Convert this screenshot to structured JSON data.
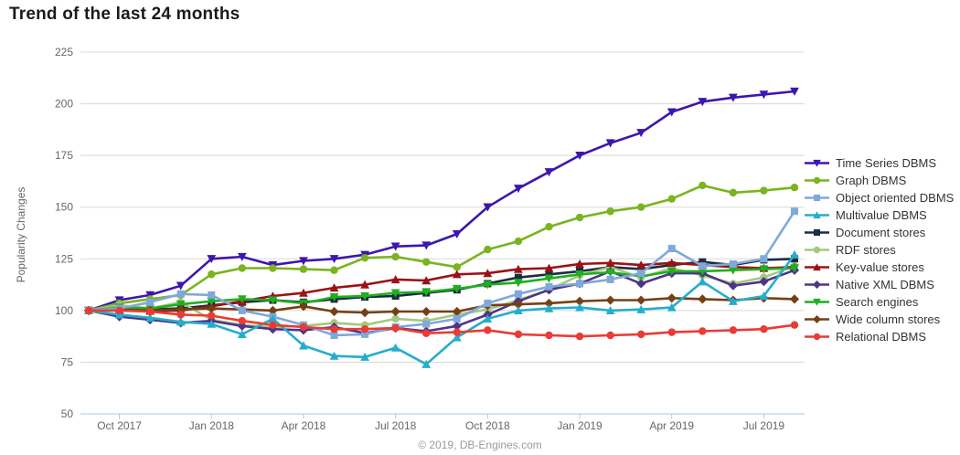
{
  "page": {
    "title": "Trend of the last 24 months",
    "copyright": "© 2019, DB-Engines.com"
  },
  "styles": {
    "grid_color": "#d8d8d8",
    "axis_line_color": "#abc7de",
    "tick_color": "#b7c9d9",
    "axis_label_color": "#666666",
    "legend_text_color": "#333333",
    "title_color": "#1a1a1a",
    "footer_color": "#9a9a9a",
    "background_color": "#ffffff"
  },
  "chart_data": {
    "type": "line",
    "title": "Trend of the last 24 months",
    "xlabel": "",
    "ylabel": "Popularity Changes",
    "ylim": [
      50,
      225
    ],
    "y_ticks": [
      50,
      75,
      100,
      125,
      150,
      175,
      200,
      225
    ],
    "grid": true,
    "legend_position": "right",
    "x_months": [
      "Sep 2017",
      "Oct 2017",
      "Nov 2017",
      "Dec 2017",
      "Jan 2018",
      "Feb 2018",
      "Mar 2018",
      "Apr 2018",
      "May 2018",
      "Jun 2018",
      "Jul 2018",
      "Aug 2018",
      "Sep 2018",
      "Oct 2018",
      "Nov 2018",
      "Dec 2018",
      "Jan 2019",
      "Feb 2019",
      "Mar 2019",
      "Apr 2019",
      "May 2019",
      "Jun 2019",
      "Jul 2019",
      "Aug 2019"
    ],
    "x_tick_labels": [
      "Oct 2017",
      "Jan 2018",
      "Apr 2018",
      "Jul 2018",
      "Oct 2018",
      "Jan 2019",
      "Apr 2019",
      "Jul 2019"
    ],
    "x_tick_indices": [
      1,
      4,
      7,
      10,
      13,
      16,
      19,
      22
    ],
    "series": [
      {
        "name": "Time Series DBMS",
        "color": "#3d16af",
        "marker": "triangle-down",
        "values": [
          100,
          105,
          107.5,
          112,
          125,
          126,
          122,
          124,
          125,
          127,
          131,
          131.5,
          137,
          150,
          159,
          167,
          175,
          181,
          186,
          196,
          201,
          203,
          204.5,
          206
        ]
      },
      {
        "name": "Graph DBMS",
        "color": "#7ab41e",
        "marker": "circle",
        "values": [
          100,
          103.5,
          105.5,
          107.5,
          117.5,
          120.5,
          120.5,
          120,
          119.5,
          125.5,
          126,
          123.5,
          121,
          129.5,
          133.5,
          140.5,
          145,
          148,
          150,
          154,
          160.5,
          157,
          158,
          159.5
        ]
      },
      {
        "name": "Object oriented DBMS",
        "color": "#7fa8db",
        "marker": "square",
        "values": [
          100,
          101,
          104,
          108,
          107.5,
          100,
          97,
          93,
          88,
          88.5,
          92,
          93.5,
          96,
          103.5,
          108,
          111.5,
          113,
          115,
          118,
          130,
          121.5,
          122.5,
          125,
          148
        ]
      },
      {
        "name": "Multivalue DBMS",
        "color": "#25adcc",
        "marker": "triangle-up",
        "values": [
          100,
          98,
          96.5,
          94.5,
          93.5,
          88.5,
          96,
          83,
          78,
          77.5,
          82,
          74,
          87,
          96,
          100,
          101,
          101.5,
          100,
          100.5,
          101.5,
          114,
          104.5,
          107,
          127
        ]
      },
      {
        "name": "Document stores",
        "color": "#1b2d40",
        "marker": "square",
        "values": [
          100,
          100.5,
          100.5,
          101,
          102.5,
          104,
          105,
          104,
          105.5,
          106.5,
          107,
          108.5,
          110,
          113,
          116,
          117.5,
          119,
          121,
          120,
          122,
          123.5,
          122,
          124.5,
          125
        ]
      },
      {
        "name": "RDF stores",
        "color": "#a6c87e",
        "marker": "circle",
        "values": [
          100,
          102.5,
          101,
          104,
          95.5,
          93,
          92,
          92.5,
          94,
          93,
          96,
          95,
          98,
          100.5,
          105,
          110,
          117,
          121,
          116,
          120.5,
          117,
          113,
          116,
          121.5
        ]
      },
      {
        "name": "Key-value stores",
        "color": "#9b1216",
        "marker": "triangle-up",
        "values": [
          100,
          100.3,
          99.8,
          100,
          102,
          104.5,
          107,
          108.5,
          111,
          112.5,
          115,
          114.5,
          117.5,
          118,
          120,
          120.5,
          122.5,
          123,
          122,
          123,
          122,
          121,
          120.5,
          121
        ]
      },
      {
        "name": "Native XML DBMS",
        "color": "#4e3589",
        "marker": "diamond",
        "values": [
          100,
          97,
          95.5,
          94,
          95,
          92.5,
          91,
          90.5,
          92,
          89,
          91.5,
          90,
          92.5,
          98,
          104.5,
          110,
          113,
          119,
          113,
          118,
          118,
          112,
          114,
          119.5
        ]
      },
      {
        "name": "Search engines",
        "color": "#1faf1f",
        "marker": "triangle-down",
        "values": [
          100,
          101.5,
          101,
          103,
          104.5,
          105.5,
          105,
          103.5,
          106.5,
          107,
          108.5,
          109,
          110.5,
          112.5,
          113.5,
          115.5,
          117.5,
          118.5,
          116.5,
          119,
          119,
          119.5,
          120,
          120.5
        ]
      },
      {
        "name": "Wide column stores",
        "color": "#754016",
        "marker": "diamond",
        "values": [
          100,
          100.5,
          100,
          100.5,
          101,
          100.5,
          100,
          102,
          99.5,
          99,
          99.5,
          99.5,
          99.5,
          102.5,
          103,
          103.5,
          104.5,
          105,
          105,
          106,
          105.5,
          105,
          106,
          105.5
        ]
      },
      {
        "name": "Relational DBMS",
        "color": "#ea3b34",
        "marker": "circle",
        "values": [
          100,
          100,
          99.5,
          98,
          97.5,
          95,
          93,
          92,
          91,
          91,
          91.5,
          89,
          89.5,
          90.5,
          88.5,
          88,
          87.5,
          88,
          88.5,
          89.5,
          90,
          90.5,
          91,
          93
        ]
      }
    ]
  }
}
